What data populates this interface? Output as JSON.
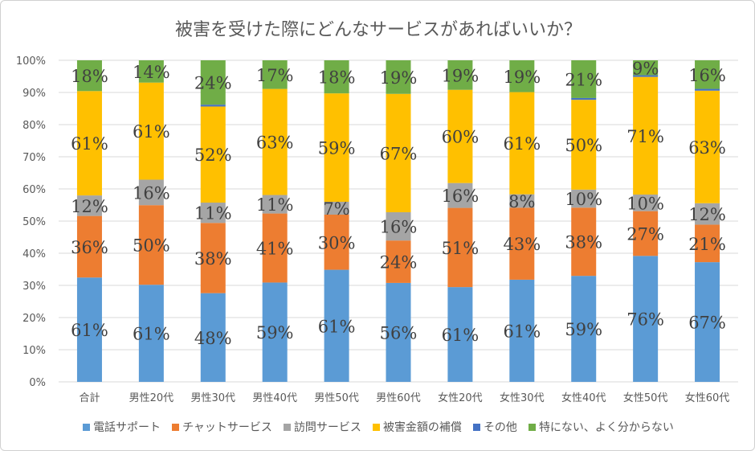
{
  "chart_data": {
    "type": "bar",
    "stacked": "100%",
    "title": "被害を受けた際にどんなサービスがあればいいか？",
    "categories": [
      "合計",
      "男性20代",
      "男性30代",
      "男性40代",
      "男性50代",
      "男性60代",
      "女性20代",
      "女性30代",
      "女性40代",
      "女性50代",
      "女性60代"
    ],
    "y_ticks": [
      "0%",
      "10%",
      "20%",
      "30%",
      "40%",
      "50%",
      "60%",
      "70%",
      "80%",
      "90%",
      "100%"
    ],
    "ylim": [
      0,
      100
    ],
    "grid": true,
    "legend_position": "bottom",
    "series": [
      {
        "name": "電話サポート",
        "color": "#5B9BD5",
        "values": [
          61,
          61,
          48,
          59,
          61,
          56,
          61,
          61,
          59,
          76,
          67
        ],
        "labels": [
          "61%",
          "61%",
          "48%",
          "59%",
          "61%",
          "56%",
          "61%",
          "61%",
          "59%",
          "76%",
          "67%"
        ]
      },
      {
        "name": "チャットサービス",
        "color": "#ED7D31",
        "values": [
          36,
          50,
          38,
          41,
          30,
          24,
          51,
          43,
          38,
          27,
          21
        ],
        "labels": [
          "36%",
          "50%",
          "38%",
          "41%",
          "30%",
          "24%",
          "51%",
          "43%",
          "38%",
          "27%",
          "21%"
        ]
      },
      {
        "name": "訪問サービス",
        "color": "#A5A5A5",
        "values": [
          12,
          16,
          11,
          11,
          7,
          16,
          16,
          8,
          10,
          10,
          12
        ],
        "labels": [
          "12%",
          "16%",
          "11%",
          "11%",
          "7%",
          "16%",
          "16%",
          "8%",
          "10%",
          "10%",
          "12%"
        ]
      },
      {
        "name": "被害金額の補償",
        "color": "#FFC000",
        "values": [
          61,
          61,
          52,
          63,
          59,
          67,
          60,
          61,
          50,
          71,
          63
        ],
        "labels": [
          "61%",
          "61%",
          "52%",
          "63%",
          "59%",
          "67%",
          "60%",
          "61%",
          "50%",
          "71%",
          "63%"
        ]
      },
      {
        "name": "その他",
        "color": "#4472C4",
        "values": [
          0,
          0,
          1,
          0,
          0,
          0,
          0,
          0,
          1,
          1,
          1
        ],
        "labels": null
      },
      {
        "name": "特にない、よく分からない",
        "color": "#70AD47",
        "values": [
          18,
          14,
          24,
          17,
          18,
          19,
          19,
          19,
          21,
          9,
          16
        ],
        "labels": [
          "18%",
          "14%",
          "24%",
          "17%",
          "18%",
          "19%",
          "19%",
          "19%",
          "21%",
          "9%",
          "16%"
        ]
      }
    ]
  }
}
